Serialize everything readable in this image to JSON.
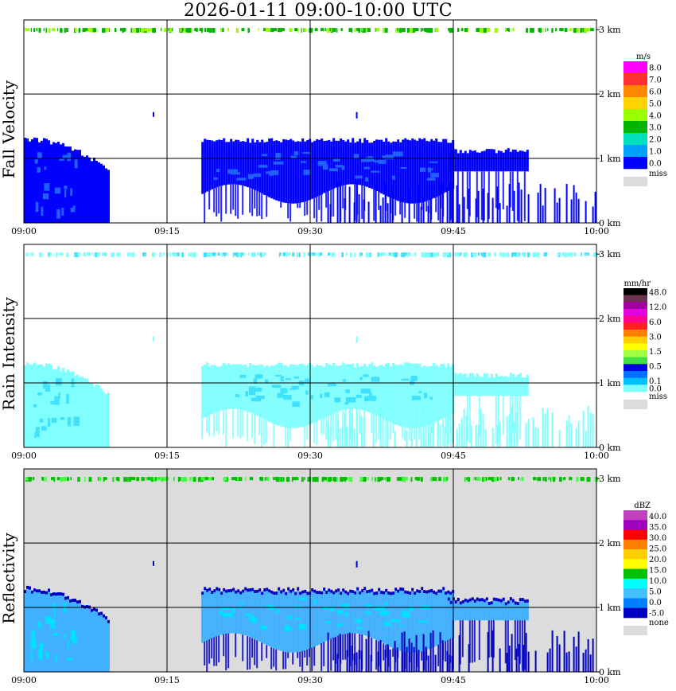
{
  "title": "2026-01-11   09:00-10:00 UTC",
  "x_ticks": [
    "09:00",
    "09:15",
    "09:30",
    "09:45",
    "10:00"
  ],
  "y_ticks": [
    "0 km",
    "1 km",
    "2 km",
    "3 km"
  ],
  "chart_data": [
    {
      "type": "heatmap",
      "ylabel": "Fall Velocity",
      "xlim": [
        "09:00",
        "10:00"
      ],
      "ylim_km": [
        0,
        3
      ],
      "grid": true,
      "legend": {
        "placement": "right",
        "unit": "m/s",
        "labels": [
          "8.0",
          "7.0",
          "6.0",
          "5.0",
          "4.0",
          "3.0",
          "2.0",
          "1.0",
          "0.0"
        ],
        "colors": [
          "#ff00ff",
          "#ff3030",
          "#ff8800",
          "#ffd200",
          "#9cff00",
          "#00b400",
          "#00e0c0",
          "#00a0ff",
          "#0000ff"
        ],
        "missing_label": "miss",
        "missing_color": "#dcdcdc"
      },
      "background": "#ffffff",
      "main_color": "#0000ff",
      "edge_color": "#0000ff",
      "inner_color": "#2060ff",
      "top_band_colors": [
        "#00b400",
        "#9cff00",
        "#00b400"
      ]
    },
    {
      "type": "heatmap",
      "ylabel": "Rain Intensity",
      "xlim": [
        "09:00",
        "10:00"
      ],
      "ylim_km": [
        0,
        3
      ],
      "grid": true,
      "legend": {
        "placement": "right",
        "unit": "mm/hr",
        "labels": [
          "48.0",
          "",
          "12.0",
          "",
          "6.0",
          "",
          "3.0",
          "",
          "1.5",
          "",
          "0.5",
          "",
          "0.1",
          "0.0"
        ],
        "colors": [
          "#000000",
          "#703050",
          "#a000a0",
          "#e000e0",
          "#ff0090",
          "#ff2020",
          "#ff8000",
          "#ffd000",
          "#ffff00",
          "#a0ff40",
          "#40e040",
          "#0000e0",
          "#0070ff",
          "#00c0ff",
          "#80ffff"
        ],
        "missing_label": "miss",
        "missing_color": "#dcdcdc"
      },
      "background": "#ffffff",
      "main_color": "#80ffff",
      "edge_color": "#80ffff",
      "inner_color": "#40e0ff",
      "top_band_colors": [
        "#80ffff",
        "#40e0ff",
        "#80ffff"
      ]
    },
    {
      "type": "heatmap",
      "ylabel": "Reflectivity",
      "xlim": [
        "09:00",
        "10:00"
      ],
      "ylim_km": [
        0,
        3
      ],
      "grid": true,
      "legend": {
        "placement": "right",
        "unit": "dBZ",
        "labels": [
          "40.0",
          "35.0",
          "30.0",
          "25.0",
          "20.0",
          "15.0",
          "10.0",
          "5.0",
          "0.0",
          "-5.0"
        ],
        "colors": [
          "#c040c0",
          "#a000c0",
          "#ff0000",
          "#ff8000",
          "#ffd000",
          "#ffff00",
          "#00c000",
          "#00ffff",
          "#40c0ff",
          "#0080ff",
          "#0000c0"
        ],
        "missing_label": "none",
        "missing_color": "#dcdcdc"
      },
      "background": "#dcdcdc",
      "main_color": "#40b0ff",
      "edge_color": "#0000c0",
      "inner_color": "#00e0ff",
      "top_band_colors": [
        "#00c000",
        "#40ff40",
        "#00c000"
      ]
    }
  ]
}
